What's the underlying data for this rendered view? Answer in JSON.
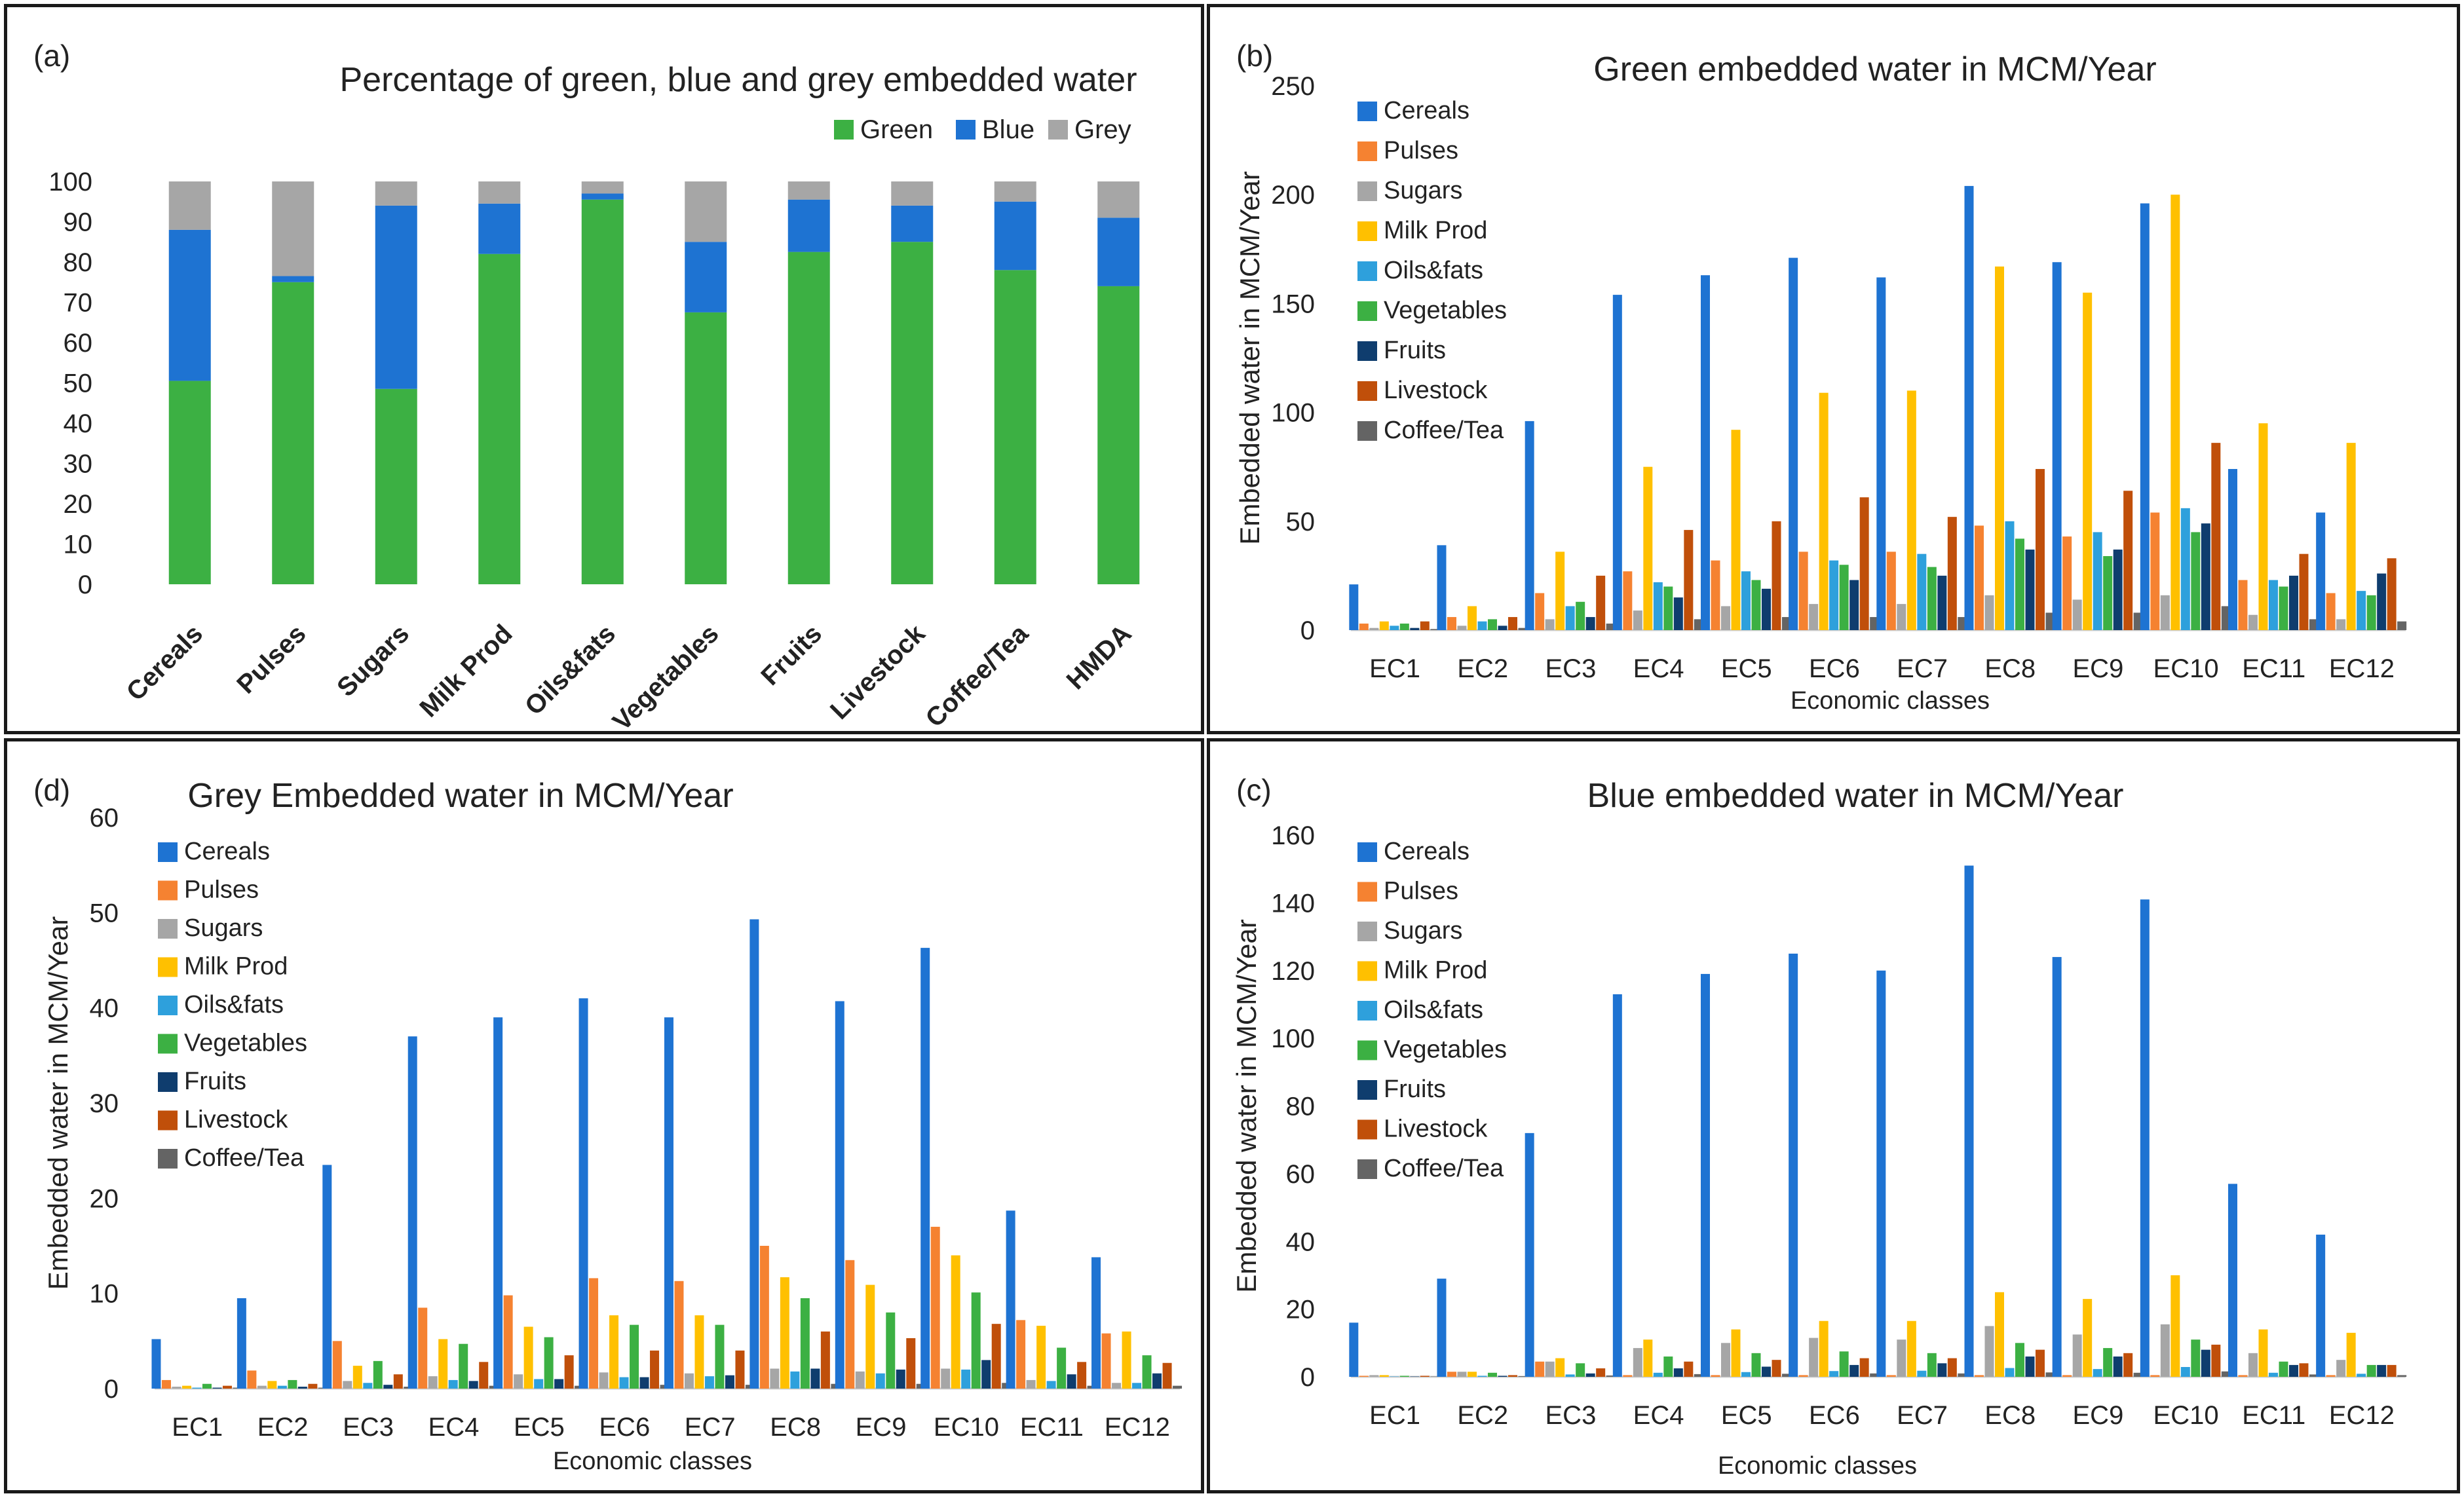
{
  "colors": {
    "green_stack": "#3cb043",
    "blue_stack": "#1e73d2",
    "grey_stack": "#a6a6a6",
    "series": [
      "#1e73d2",
      "#f58231",
      "#a6a6a6",
      "#ffc000",
      "#2ea0dc",
      "#3cb043",
      "#0f3d6e",
      "#c04f0a",
      "#646464"
    ]
  },
  "chart_data": [
    {
      "panel": "(a)",
      "type": "bar",
      "stacked": true,
      "title": "Percentage  of green, blue and grey embedded water",
      "categories": [
        "Cereals",
        "Pulses",
        "Sugars",
        "Milk Prod",
        "Oils&fats",
        "Vegetables",
        "Fruits",
        "Livestock",
        "Coffee/Tea",
        "HMDA"
      ],
      "series": [
        {
          "name": "Green",
          "values": [
            50.5,
            75,
            48.5,
            82,
            95.5,
            67.5,
            82.5,
            85,
            78,
            74
          ]
        },
        {
          "name": "Blue",
          "values": [
            37.5,
            1.5,
            45.5,
            12.5,
            1.5,
            17.5,
            13,
            9,
            17,
            17
          ]
        },
        {
          "name": "Grey",
          "values": [
            12,
            23.5,
            6,
            5.5,
            3,
            15,
            4.5,
            6,
            5,
            9
          ]
        }
      ],
      "xlabel": "",
      "ylabel": "",
      "ylim": [
        0,
        100
      ],
      "yticks": [
        "0",
        "10",
        "20",
        "30",
        "40",
        "50",
        "60",
        "70",
        "80",
        "90",
        "100"
      ],
      "legend_position": "top-right"
    },
    {
      "panel": "(b)",
      "type": "bar",
      "title": "Green embedded water in MCM/Year",
      "categories": [
        "EC1",
        "EC2",
        "EC3",
        "EC4",
        "EC5",
        "EC6",
        "EC7",
        "EC8",
        "EC9",
        "EC10",
        "EC11",
        "EC12"
      ],
      "series": [
        {
          "name": "Cereals",
          "values": [
            21,
            39,
            96,
            154,
            163,
            171,
            162,
            204,
            169,
            196,
            74,
            54
          ]
        },
        {
          "name": "Pulses",
          "values": [
            3,
            6,
            17,
            27,
            32,
            36,
            36,
            48,
            43,
            54,
            23,
            17
          ]
        },
        {
          "name": "Sugars",
          "values": [
            1,
            2,
            5,
            9,
            11,
            12,
            12,
            16,
            14,
            16,
            7,
            5
          ]
        },
        {
          "name": "Milk Prod",
          "values": [
            4,
            11,
            36,
            75,
            92,
            109,
            110,
            167,
            155,
            200,
            95,
            86
          ]
        },
        {
          "name": "Oils&fats",
          "values": [
            2,
            4,
            11,
            22,
            27,
            32,
            35,
            50,
            45,
            56,
            23,
            18
          ]
        },
        {
          "name": "Vegetables",
          "values": [
            3,
            5,
            13,
            20,
            23,
            30,
            29,
            42,
            34,
            45,
            20,
            16
          ]
        },
        {
          "name": "Fruits",
          "values": [
            1,
            2,
            6,
            15,
            19,
            23,
            25,
            37,
            37,
            49,
            25,
            26
          ]
        },
        {
          "name": "Livestock",
          "values": [
            4,
            6,
            25,
            46,
            50,
            61,
            52,
            74,
            64,
            86,
            35,
            33
          ]
        },
        {
          "name": "Coffee/Tea",
          "values": [
            0.5,
            1,
            3,
            5,
            6,
            6,
            6,
            8,
            8,
            11,
            5,
            4
          ]
        }
      ],
      "xlabel": "Economic classes",
      "ylabel": "Embedded water in MCM/Year",
      "ylim": [
        0,
        250
      ],
      "yticks": [
        "0",
        "50",
        "100",
        "150",
        "200",
        "250"
      ],
      "legend_position": "top-left"
    },
    {
      "panel": "(d)",
      "type": "bar",
      "title": "Grey Embedded water in MCM/Year",
      "categories": [
        "EC1",
        "EC2",
        "EC3",
        "EC4",
        "EC5",
        "EC6",
        "EC7",
        "EC8",
        "EC9",
        "EC10",
        "EC11",
        "EC12"
      ],
      "series": [
        {
          "name": "Cereals",
          "values": [
            5.2,
            9.5,
            23.5,
            37,
            39,
            41,
            39,
            49.3,
            40.7,
            46.3,
            18.7,
            13.8
          ]
        },
        {
          "name": "Pulses",
          "values": [
            0.9,
            1.9,
            5,
            8.5,
            9.8,
            11.6,
            11.3,
            15,
            13.5,
            17,
            7.2,
            5.8
          ]
        },
        {
          "name": "Sugars",
          "values": [
            0.2,
            0.3,
            0.8,
            1.3,
            1.5,
            1.7,
            1.6,
            2.1,
            1.8,
            2.1,
            0.9,
            0.6
          ]
        },
        {
          "name": "Milk Prod",
          "values": [
            0.3,
            0.8,
            2.4,
            5.2,
            6.5,
            7.7,
            7.7,
            11.7,
            10.9,
            14,
            6.6,
            6
          ]
        },
        {
          "name": "Oils&fats",
          "values": [
            0.1,
            0.3,
            0.6,
            0.9,
            1,
            1.2,
            1.3,
            1.8,
            1.6,
            2,
            0.8,
            0.6
          ]
        },
        {
          "name": "Vegetables",
          "values": [
            0.5,
            0.9,
            2.9,
            4.7,
            5.4,
            6.7,
            6.7,
            9.5,
            8,
            10.1,
            4.3,
            3.5
          ]
        },
        {
          "name": "Fruits",
          "values": [
            0.1,
            0.2,
            0.4,
            0.8,
            1,
            1.2,
            1.4,
            2.1,
            2,
            3,
            1.5,
            1.6
          ]
        },
        {
          "name": "Livestock",
          "values": [
            0.3,
            0.5,
            1.5,
            2.8,
            3.5,
            4,
            4,
            6,
            5.3,
            6.8,
            2.8,
            2.7
          ]
        },
        {
          "name": "Coffee/Tea",
          "values": [
            0.1,
            0.1,
            0.2,
            0.3,
            0.3,
            0.4,
            0.4,
            0.5,
            0.5,
            0.6,
            0.3,
            0.3
          ]
        }
      ],
      "xlabel": "Economic classes",
      "ylabel": "Embedded water in MCM/Year",
      "ylim": [
        0,
        60
      ],
      "yticks": [
        "0",
        "10",
        "20",
        "30",
        "40",
        "50",
        "60"
      ],
      "legend_position": "top-left"
    },
    {
      "panel": "(c)",
      "type": "bar",
      "title": "Blue embedded water in MCM/Year",
      "categories": [
        "EC1",
        "EC2",
        "EC3",
        "EC4",
        "EC5",
        "EC6",
        "EC7",
        "EC8",
        "EC9",
        "EC10",
        "EC11",
        "EC12"
      ],
      "series": [
        {
          "name": "Cereals",
          "values": [
            16,
            29,
            72,
            113,
            119,
            125,
            120,
            151,
            124,
            141,
            57,
            42
          ]
        },
        {
          "name": "Pulses",
          "values": [
            0.3,
            1.5,
            4.5,
            0.5,
            0.5,
            0.5,
            0.5,
            0.5,
            0.5,
            0.5,
            0.5,
            0.5
          ]
        },
        {
          "name": "Sugars",
          "values": [
            0.5,
            1.5,
            4.5,
            8.5,
            10,
            11.5,
            11,
            15,
            12.5,
            15.5,
            7,
            5
          ]
        },
        {
          "name": "Milk Prod",
          "values": [
            0.5,
            1.5,
            5.5,
            11,
            14,
            16.5,
            16.5,
            25,
            23,
            30,
            14,
            13
          ]
        },
        {
          "name": "Oils&fats",
          "values": [
            0.1,
            0.3,
            0.7,
            1.2,
            1.4,
            1.7,
            1.8,
            2.6,
            2.3,
            2.9,
            1.2,
            0.9
          ]
        },
        {
          "name": "Vegetables",
          "values": [
            0.3,
            1.2,
            4,
            6,
            7,
            7.5,
            7,
            10,
            8.5,
            11,
            4.5,
            3.5
          ]
        },
        {
          "name": "Fruits",
          "values": [
            0.1,
            0.3,
            1,
            2.5,
            3,
            3.5,
            4,
            6,
            6,
            8,
            3.5,
            3.5
          ]
        },
        {
          "name": "Livestock",
          "values": [
            0.3,
            0.5,
            2.5,
            4.5,
            5,
            5.5,
            5.5,
            8,
            7,
            9.5,
            4,
            3.5
          ]
        },
        {
          "name": "Coffee/Tea",
          "values": [
            0.1,
            0.2,
            0.4,
            0.8,
            0.9,
            1,
            1,
            1.3,
            1.2,
            1.6,
            0.7,
            0.5
          ]
        }
      ],
      "xlabel": "Economic classes",
      "ylabel": "Embedded water in MCM/Year",
      "ylim": [
        0,
        160
      ],
      "yticks": [
        "0",
        "20",
        "40",
        "60",
        "80",
        "100",
        "120",
        "140",
        "160"
      ],
      "legend_position": "top-left"
    }
  ]
}
